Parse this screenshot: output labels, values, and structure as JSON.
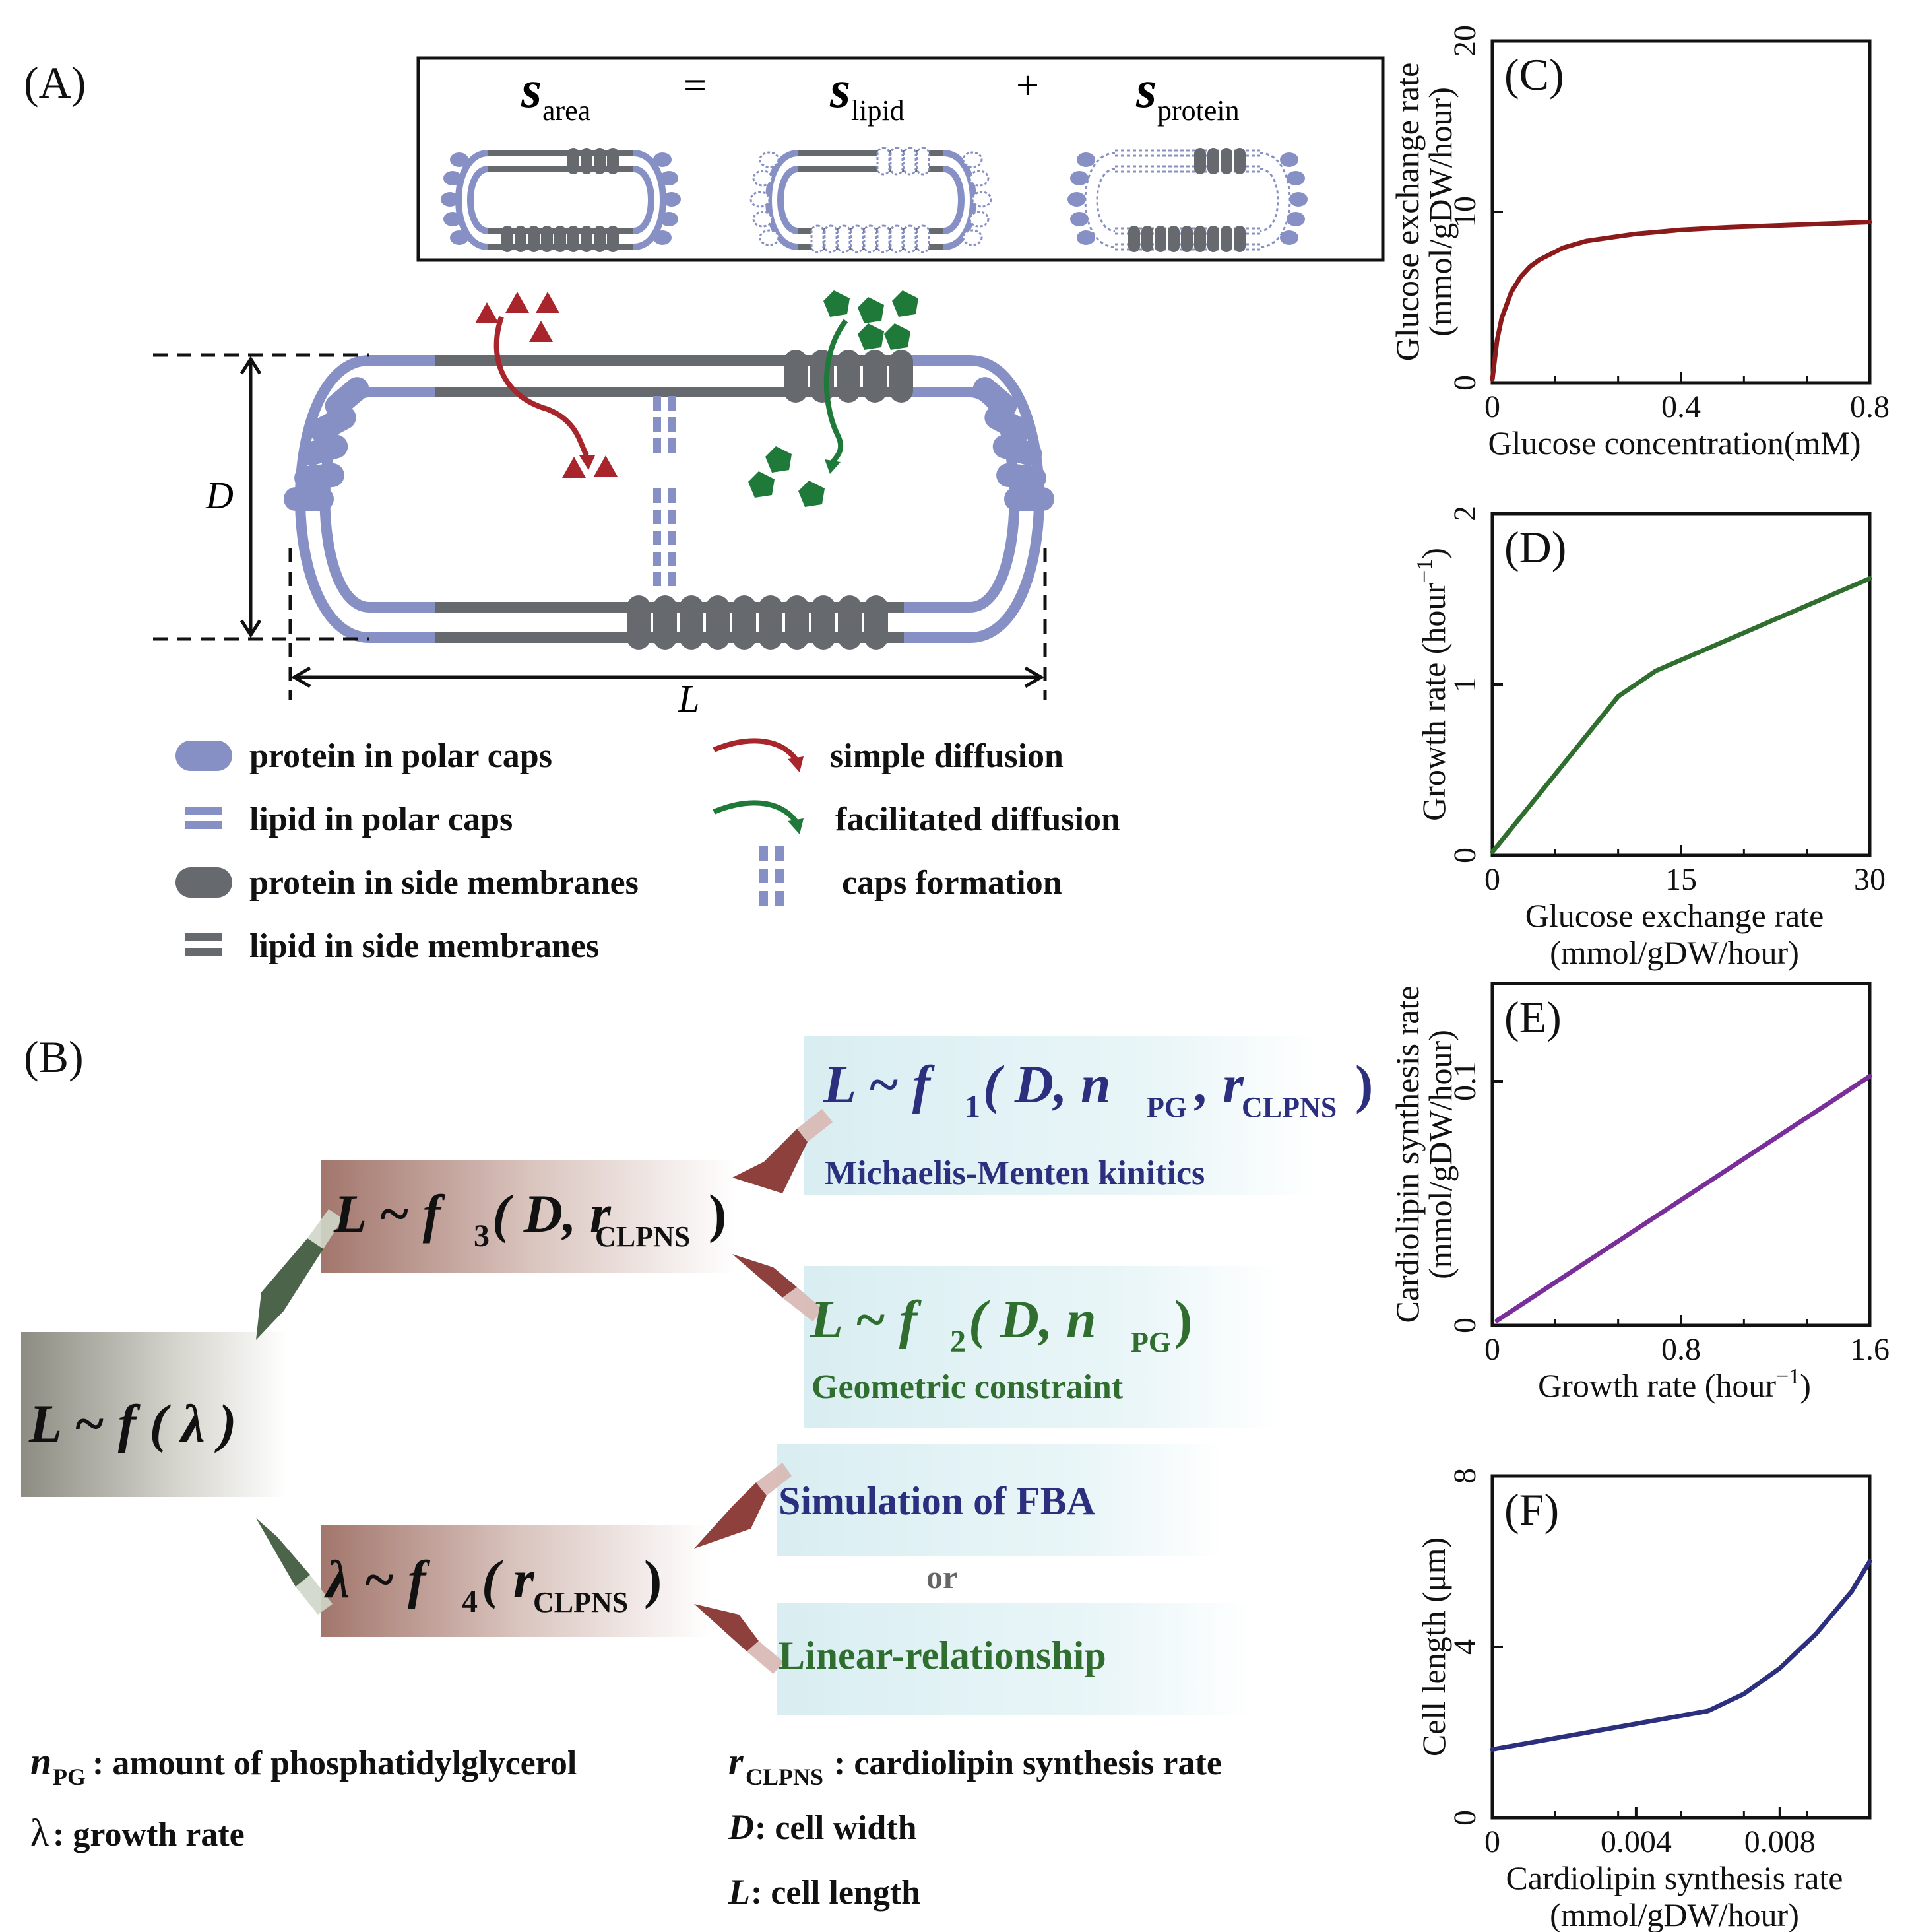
{
  "panel_labels": {
    "A": "(A)",
    "B": "(B)",
    "C": "(C)",
    "D": "(D)",
    "E": "(E)",
    "F": "(F)"
  },
  "equation": {
    "s_symbol": "s",
    "area_sub": "area",
    "equals": "=",
    "lipid_sub": "lipid",
    "plus": "+",
    "protein_sub": "protein"
  },
  "cell_labels": {
    "D": "D",
    "L": "L"
  },
  "legend": [
    {
      "label": "protein in polar caps",
      "icon": "blue-pill"
    },
    {
      "label": "lipid in polar caps",
      "icon": "blue-double-bar"
    },
    {
      "label": "protein in side membranes",
      "icon": "gray-pill"
    },
    {
      "label": "lipid in side membranes",
      "icon": "gray-double-bar"
    },
    {
      "label": "simple diffusion",
      "icon": "red-arrow"
    },
    {
      "label": "facilitated diffusion",
      "icon": "green-arrow"
    },
    {
      "label": "caps formation",
      "icon": "blue-dashed-columns"
    }
  ],
  "colors": {
    "blue": "#8790c4",
    "gray": "#666a6e",
    "red": "#a8252c",
    "green": "#1f7a3a",
    "navy": "#2b2f7e",
    "dark_green": "#2f6e2f",
    "purple": "#7a2e9a",
    "dark_red": "#8b1a1a"
  },
  "panelB": {
    "f1_main": "L ~ f",
    "f1_sub": "1",
    "f1_args": "( D, n",
    "f1_pg": "PG",
    "f1_r": ", r",
    "f1_clpns": "CLPNS",
    "f1_close": ")",
    "f1_caption": "Michaelis-Menten kinitics",
    "f2_main": "L ~ f",
    "f2_sub": "2",
    "f2_args": "( D, n",
    "f2_pg": "PG",
    "f2_close": ")",
    "f2_caption": "Geometric constraint",
    "f3_main": "L ~ f",
    "f3_sub": "3",
    "f3_args": "( D, r",
    "f3_clpns": "CLPNS",
    "f3_close": ")",
    "f_main": "L ~ f ( λ )",
    "f4_main": "λ ~ f",
    "f4_sub": "4",
    "f4_args": "( r",
    "f4_clpns": "CLPNS",
    "f4_close": " )",
    "fba": "Simulation of FBA",
    "or": "or",
    "linear": "Linear-relationship"
  },
  "definitions": {
    "npg_sym": "n",
    "npg_sub": "PG",
    "npg_text": ": amount of phosphatidylglycerol",
    "lambda_sym": "λ",
    "lambda_text": ": growth rate",
    "r_sym": "r",
    "r_sub": "CLPNS",
    "r_text": ": cardiolipin synthesis rate",
    "d_sym": "D",
    "d_text": " : cell width",
    "l_sym": "L",
    "l_text": " : cell length"
  },
  "chart_data": [
    {
      "id": "C",
      "type": "line",
      "xlabel": "Glucose concentration(mM)",
      "ylabel_line1": "Glucose exchange rate",
      "ylabel_line2": "(mmol/gDW/hour)",
      "xlim": [
        0,
        0.8
      ],
      "ylim": [
        0,
        20
      ],
      "xticks": [
        "0",
        "0.4",
        "0.8"
      ],
      "yticks": [
        "0",
        "10",
        "20"
      ],
      "color": "#8b1a1a",
      "x": [
        0,
        0.01,
        0.02,
        0.04,
        0.06,
        0.08,
        0.1,
        0.15,
        0.2,
        0.3,
        0.4,
        0.5,
        0.6,
        0.7,
        0.8
      ],
      "y": [
        0.2,
        2.5,
        3.8,
        5.3,
        6.2,
        6.8,
        7.2,
        7.9,
        8.3,
        8.7,
        8.95,
        9.1,
        9.2,
        9.3,
        9.4
      ]
    },
    {
      "id": "D",
      "type": "line",
      "xlabel_line1": "Glucose exchange rate",
      "xlabel_line2": "(mmol/gDW/hour)",
      "ylabel": "Growth rate (hour",
      "ylabel_sup": "−1",
      "ylabel_close": ")",
      "xlim": [
        0,
        30
      ],
      "ylim": [
        0,
        2
      ],
      "xticks": [
        "0",
        "15",
        "30"
      ],
      "yticks": [
        "0",
        "1",
        "2"
      ],
      "color": "#2f6e2f",
      "x": [
        0,
        10,
        13,
        30
      ],
      "y": [
        0.02,
        0.93,
        1.08,
        1.62
      ]
    },
    {
      "id": "E",
      "type": "line",
      "xlabel": "Growth rate (hour",
      "xlabel_sup": "−1",
      "xlabel_close": ")",
      "ylabel_line1": "Cardiolipin synthesis rate",
      "ylabel_line2": "(mmol/gDW/hour)",
      "xlim": [
        0,
        1.6
      ],
      "ylim": [
        0,
        0.14
      ],
      "xticks": [
        "0",
        "0.8",
        "1.6"
      ],
      "yticks": [
        "0",
        "0.1"
      ],
      "ytick_values": [
        0,
        0.1
      ],
      "color": "#7a2e9a",
      "x": [
        0.02,
        1.6
      ],
      "y": [
        0.002,
        0.102
      ]
    },
    {
      "id": "F",
      "type": "line",
      "xlabel_line1": "Cardiolipin synthesis rate",
      "xlabel_line2": "(mmol/gDW/hour)",
      "ylabel": "Cell length (μm)",
      "xlim": [
        0,
        0.0105
      ],
      "ylim": [
        0,
        8
      ],
      "xticks": [
        "0",
        "0.004",
        "0.008"
      ],
      "xtick_values": [
        0,
        0.004,
        0.008
      ],
      "yticks": [
        "0",
        "4",
        "8"
      ],
      "color": "#2b2f7e",
      "x": [
        0,
        0.002,
        0.004,
        0.006,
        0.007,
        0.008,
        0.009,
        0.01,
        0.0105
      ],
      "y": [
        1.6,
        1.9,
        2.2,
        2.5,
        2.9,
        3.5,
        4.3,
        5.3,
        6.0
      ]
    }
  ]
}
